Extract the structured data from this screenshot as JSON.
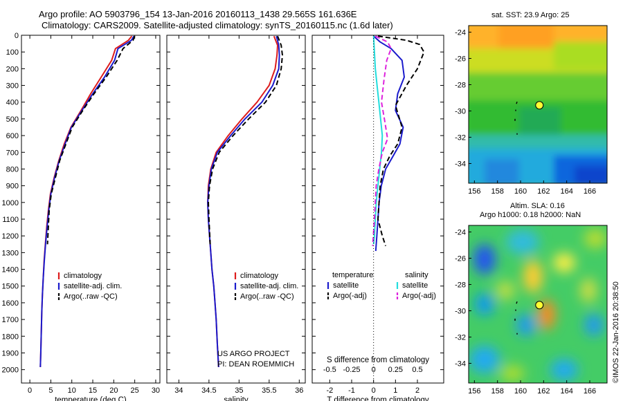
{
  "figure": {
    "title_line1": "Argo profile: AO 5903796_154 13-Jan-2016 20160113_1438 29.565S 161.636E",
    "title_line2": "Climatology: CARS2009. Satellite-adjusted climatology: synTS_20160115.nc (1.6d later)",
    "credit_line1": "US ARGO PROJECT",
    "credit_line2": "PI: DEAN ROEMMICH",
    "imos_stamp": "©IMOS 22-Jan-2016 20:38:50"
  },
  "colors": {
    "climatology": "#dd1c1c",
    "satellite": "#1a1acc",
    "argo": "#000000",
    "satellite_salinity": "#22dddd",
    "argo_salinity": "#dd22dd",
    "marker": "#ffff33"
  },
  "maps": {
    "sst": {
      "title": "sat. SST: 23.9  Argo: 25",
      "lon_range": [
        155.5,
        167.5
      ],
      "lat_range": [
        -35.5,
        -23.5
      ],
      "x_ticks": [
        "156",
        "158",
        "160",
        "162",
        "164",
        "166"
      ],
      "y_ticks": [
        "-24",
        "-26",
        "-28",
        "-30",
        "-32",
        "-34"
      ],
      "float_lon": 161.636,
      "float_lat": -29.565
    },
    "sla": {
      "title_line1": "Altim. SLA: 0.16",
      "title_line2": "Argo h1000: 0.18 h2000: NaN",
      "lon_range": [
        155.5,
        167.5
      ],
      "lat_range": [
        -35.5,
        -23.5
      ],
      "x_ticks": [
        "156",
        "158",
        "160",
        "162",
        "164",
        "166"
      ],
      "y_ticks": [
        "-24",
        "-26",
        "-28",
        "-30",
        "-32",
        "-34"
      ],
      "float_lon": 161.636,
      "float_lat": -29.565
    }
  },
  "chart_data": [
    {
      "type": "line",
      "id": "temperature",
      "xlabel": "temperature (deg C)",
      "ylabel": "",
      "xlim": [
        -2,
        31
      ],
      "ylim": [
        0,
        2080
      ],
      "y_inverted": true,
      "x_ticks": [
        "0",
        "5",
        "10",
        "15",
        "20",
        "25",
        "30"
      ],
      "y_ticks": [
        "0",
        "100",
        "200",
        "300",
        "400",
        "500",
        "600",
        "700",
        "800",
        "900",
        "1000",
        "1100",
        "1200",
        "1300",
        "1400",
        "1500",
        "1600",
        "1700",
        "1800",
        "1900",
        "2000"
      ],
      "legend": [
        "climatology",
        "satellite-adj. clim.",
        "Argo(..raw -QC)"
      ],
      "series": [
        {
          "name": "climatology",
          "style": "solid",
          "x": [
            24.3,
            23.5,
            20.4,
            19.5,
            17.0,
            14.5,
            12.2,
            9.8,
            8.2,
            6.9,
            5.8,
            4.9,
            4.4,
            4.0,
            3.7,
            3.4,
            3.2,
            3.0,
            2.85,
            2.7,
            2.6,
            2.5
          ],
          "y": [
            5,
            30,
            80,
            150,
            250,
            350,
            450,
            550,
            650,
            750,
            850,
            950,
            1050,
            1150,
            1250,
            1350,
            1450,
            1550,
            1650,
            1800,
            1900,
            1985
          ]
        },
        {
          "name": "satellite-adj. clim.",
          "style": "solid",
          "x": [
            24.8,
            24.2,
            21.0,
            20.2,
            17.8,
            15.0,
            12.4,
            9.9,
            8.4,
            7.0,
            5.9,
            5.0,
            4.5,
            4.1,
            3.75,
            3.45,
            3.2,
            3.0,
            2.85,
            2.7,
            2.6,
            2.5
          ],
          "y": [
            5,
            30,
            80,
            150,
            250,
            350,
            450,
            550,
            650,
            750,
            850,
            950,
            1050,
            1150,
            1250,
            1350,
            1450,
            1550,
            1650,
            1800,
            1900,
            1985
          ]
        },
        {
          "name": "Argo(..raw -QC)",
          "style": "dashed",
          "x": [
            25.0,
            24.6,
            22.2,
            20.8,
            18.2,
            15.3,
            12.6,
            10.1,
            8.6,
            7.1,
            6.1,
            5.1,
            4.6,
            4.2
          ],
          "y": [
            5,
            30,
            80,
            150,
            250,
            350,
            450,
            550,
            650,
            750,
            850,
            950,
            1050,
            1250
          ]
        }
      ]
    },
    {
      "type": "line",
      "id": "salinity",
      "xlabel": "salinity",
      "ylabel": "",
      "xlim": [
        33.8,
        36.1
      ],
      "ylim": [
        0,
        2080
      ],
      "y_inverted": true,
      "x_ticks": [
        "34",
        "34.5",
        "35",
        "35.5",
        "36"
      ],
      "legend": [
        "climatology",
        "satellite-adj. clim.",
        "Argo(..raw -QC)"
      ],
      "series": [
        {
          "name": "climatology",
          "style": "solid",
          "x": [
            35.58,
            35.64,
            35.63,
            35.6,
            35.5,
            35.3,
            35.05,
            34.82,
            34.62,
            34.53,
            34.49,
            34.48,
            34.49,
            34.51,
            34.53,
            34.55,
            34.58,
            34.6,
            34.62,
            34.64,
            34.66
          ],
          "y": [
            5,
            60,
            120,
            200,
            300,
            400,
            500,
            600,
            700,
            800,
            900,
            1000,
            1100,
            1200,
            1300,
            1400,
            1500,
            1600,
            1700,
            1850,
            1985
          ]
        },
        {
          "name": "satellite-adj. clim.",
          "style": "solid",
          "x": [
            35.62,
            35.66,
            35.67,
            35.66,
            35.56,
            35.38,
            35.1,
            34.86,
            34.64,
            34.54,
            34.5,
            34.48,
            34.49,
            34.51,
            34.53,
            34.55,
            34.58,
            34.6,
            34.62,
            34.64,
            34.66
          ],
          "y": [
            5,
            60,
            120,
            200,
            300,
            400,
            500,
            600,
            700,
            800,
            900,
            1000,
            1100,
            1200,
            1300,
            1400,
            1500,
            1600,
            1700,
            1850,
            1985
          ]
        },
        {
          "name": "Argo(..raw -QC)",
          "style": "dashed",
          "x": [
            35.64,
            35.7,
            35.72,
            35.7,
            35.62,
            35.44,
            35.16,
            34.9,
            34.67,
            34.56,
            34.51,
            34.49,
            34.5,
            34.52
          ],
          "y": [
            5,
            60,
            120,
            200,
            300,
            400,
            500,
            600,
            700,
            800,
            900,
            1000,
            1100,
            1250
          ]
        }
      ]
    },
    {
      "type": "line",
      "id": "difference",
      "xlabel": "T difference from climatology",
      "x2label": "S difference from climatology",
      "xlim": [
        -2.8,
        3.2
      ],
      "x2lim": [
        -0.7,
        0.8
      ],
      "ylim": [
        0,
        2080
      ],
      "y_inverted": true,
      "x_ticks": [
        {
          "v": -2,
          "label": "-2"
        },
        {
          "v": -1,
          "label": "-1"
        },
        {
          "v": 0,
          "label": "0"
        },
        {
          "v": 1,
          "label": "1"
        },
        {
          "v": 2,
          "label": "2"
        }
      ],
      "x2_ticks": [
        {
          "v": -0.5,
          "label": "-0.5"
        },
        {
          "v": -0.25,
          "label": "-0.25"
        },
        {
          "v": 0,
          "label": "0"
        },
        {
          "v": 0.25,
          "label": "0.25"
        },
        {
          "v": 0.5,
          "label": "0.5"
        }
      ],
      "legend_temperature_header": "temperature",
      "legend_salinity_header": "salinity",
      "legend": [
        "satellite",
        "Argo(-adj)",
        "satellite",
        "Argo(-adj)"
      ],
      "series": [
        {
          "name": "satellite",
          "group": "temperature",
          "axis": "x",
          "style": "solid",
          "x": [
            0.0,
            0.3,
            0.8,
            1.3,
            1.4,
            1.1,
            1.0,
            1.35,
            1.2,
            0.9,
            0.55,
            0.35,
            0.25,
            0.2,
            0.15,
            0.12,
            0.1
          ],
          "y": [
            5,
            40,
            80,
            150,
            250,
            350,
            450,
            550,
            650,
            720,
            800,
            900,
            1000,
            1100,
            1200,
            1250,
            1290
          ]
        },
        {
          "name": "Argo(-adj)",
          "group": "temperature",
          "axis": "x",
          "style": "dashed",
          "x": [
            0.2,
            1.5,
            2.1,
            2.3,
            2.0,
            1.5,
            1.0,
            1.3,
            1.1,
            0.75,
            0.45,
            0.3,
            0.25,
            0.2,
            0.4,
            0.55
          ],
          "y": [
            5,
            30,
            55,
            100,
            200,
            300,
            420,
            550,
            650,
            720,
            800,
            900,
            1000,
            1100,
            1200,
            1260
          ]
        },
        {
          "name": "satellite",
          "group": "salinity",
          "axis": "x2",
          "style": "solid",
          "x": [
            0.0,
            0.01,
            0.02,
            0.04,
            0.06,
            0.08,
            0.1,
            0.09,
            0.07,
            0.05,
            0.03,
            0.02,
            0.01,
            0.0
          ],
          "y": [
            5,
            100,
            200,
            300,
            400,
            500,
            600,
            700,
            800,
            900,
            1000,
            1100,
            1200,
            1250
          ]
        },
        {
          "name": "Argo(-adj)",
          "group": "salinity",
          "axis": "x2",
          "style": "dashed",
          "x": [
            0.02,
            0.16,
            0.2,
            0.15,
            0.12,
            0.09,
            0.13,
            0.16,
            0.1,
            0.06,
            0.03,
            0.02,
            0.01,
            -0.01
          ],
          "y": [
            5,
            40,
            80,
            150,
            260,
            400,
            520,
            620,
            700,
            800,
            900,
            1000,
            1100,
            1260
          ]
        }
      ]
    }
  ]
}
